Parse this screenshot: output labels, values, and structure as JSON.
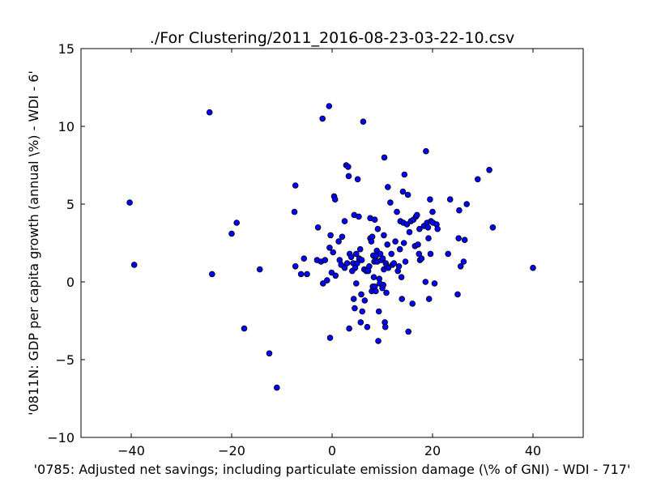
{
  "chart_data": {
    "type": "scatter",
    "title": "./For Clustering/2011_2016-08-23-03-22-10.csv",
    "xlabel": "'0785: Adjusted net savings; including particulate emission damage  (\\% of GNI) - WDI - 717'",
    "ylabel": "'0811N: GDP per capita growth  (annual \\%) - WDI - 6'",
    "xlim": [
      -50,
      50
    ],
    "ylim": [
      -10,
      15
    ],
    "xticks": [
      -40,
      -20,
      0,
      20,
      40
    ],
    "yticks": [
      -10,
      -5,
      0,
      5,
      10,
      15
    ],
    "xtick_labels": [
      "−40",
      "−20",
      "0",
      "20",
      "40"
    ],
    "ytick_labels": [
      "−10",
      "−5",
      "0",
      "5",
      "10",
      "15"
    ],
    "grid": false,
    "marker_color": "#0000ff",
    "points": [
      [
        -40.3,
        5.1
      ],
      [
        -39.4,
        1.1
      ],
      [
        -24.4,
        10.9
      ],
      [
        -23.9,
        0.5
      ],
      [
        -20.0,
        3.1
      ],
      [
        -19.0,
        3.8
      ],
      [
        -17.5,
        -3.0
      ],
      [
        -14.4,
        0.8
      ],
      [
        -12.5,
        -4.6
      ],
      [
        -11.0,
        -6.8
      ],
      [
        -7.3,
        6.2
      ],
      [
        -7.5,
        4.5
      ],
      [
        -7.3,
        1.0
      ],
      [
        -6.2,
        0.5
      ],
      [
        -5.6,
        1.5
      ],
      [
        -5.0,
        0.5
      ],
      [
        -3.0,
        1.4
      ],
      [
        -2.8,
        3.5
      ],
      [
        -2.2,
        1.3
      ],
      [
        -1.9,
        10.5
      ],
      [
        -1.8,
        -0.1
      ],
      [
        -1.4,
        1.4
      ],
      [
        -1.0,
        0.1
      ],
      [
        -0.6,
        11.3
      ],
      [
        -0.5,
        2.2
      ],
      [
        -0.4,
        -3.6
      ],
      [
        -0.3,
        3.0
      ],
      [
        -0.1,
        0.6
      ],
      [
        0.2,
        1.9
      ],
      [
        0.4,
        5.5
      ],
      [
        0.6,
        5.3
      ],
      [
        0.7,
        0.4
      ],
      [
        1.3,
        2.6
      ],
      [
        1.5,
        1.4
      ],
      [
        1.8,
        1.1
      ],
      [
        2.0,
        2.9
      ],
      [
        2.5,
        0.9
      ],
      [
        2.5,
        3.9
      ],
      [
        2.8,
        7.5
      ],
      [
        3.0,
        1.2
      ],
      [
        3.2,
        7.4
      ],
      [
        3.3,
        6.8
      ],
      [
        3.4,
        -3.0
      ],
      [
        3.5,
        1.8
      ],
      [
        3.8,
        1.6
      ],
      [
        4.0,
        0.7
      ],
      [
        4.2,
        1.2
      ],
      [
        4.3,
        -1.1
      ],
      [
        4.4,
        4.3
      ],
      [
        4.5,
        -1.7
      ],
      [
        4.6,
        0.9
      ],
      [
        4.8,
        -0.1
      ],
      [
        4.8,
        1.8
      ],
      [
        5.0,
        1.2
      ],
      [
        5.1,
        6.6
      ],
      [
        5.3,
        4.2
      ],
      [
        5.4,
        1.5
      ],
      [
        5.6,
        2.1
      ],
      [
        5.7,
        -2.6
      ],
      [
        5.8,
        -0.8
      ],
      [
        5.9,
        1.4
      ],
      [
        6.0,
        -1.9
      ],
      [
        6.2,
        10.3
      ],
      [
        6.4,
        0.8
      ],
      [
        6.5,
        -1.2
      ],
      [
        6.8,
        0.7
      ],
      [
        7.0,
        -2.9
      ],
      [
        7.2,
        0.7
      ],
      [
        7.4,
        1.0
      ],
      [
        7.6,
        2.8
      ],
      [
        7.6,
        4.1
      ],
      [
        7.8,
        2.6
      ],
      [
        7.9,
        -0.6
      ],
      [
        8.0,
        2.9
      ],
      [
        8.1,
        -0.3
      ],
      [
        8.2,
        1.7
      ],
      [
        8.3,
        0.3
      ],
      [
        8.4,
        1.3
      ],
      [
        8.5,
        -0.3
      ],
      [
        8.5,
        4.0
      ],
      [
        8.6,
        1.4
      ],
      [
        8.7,
        -0.6
      ],
      [
        8.8,
        1.7
      ],
      [
        8.9,
        2.0
      ],
      [
        9.0,
        1.3
      ],
      [
        9.1,
        3.4
      ],
      [
        9.2,
        -3.8
      ],
      [
        9.3,
        -1.9
      ],
      [
        9.4,
        0.2
      ],
      [
        9.5,
        -0.1
      ],
      [
        9.6,
        1.8
      ],
      [
        9.8,
        1.4
      ],
      [
        10.0,
        -0.4
      ],
      [
        10.1,
        1.5
      ],
      [
        10.2,
        -0.2
      ],
      [
        10.3,
        0.8
      ],
      [
        10.3,
        3.0
      ],
      [
        10.4,
        8.0
      ],
      [
        10.5,
        -2.6
      ],
      [
        10.6,
        -2.9
      ],
      [
        10.7,
        1.2
      ],
      [
        10.8,
        -0.7
      ],
      [
        10.9,
        1.0
      ],
      [
        11.0,
        2.4
      ],
      [
        11.1,
        6.1
      ],
      [
        11.2,
        0.9
      ],
      [
        11.6,
        5.1
      ],
      [
        11.8,
        1.8
      ],
      [
        12.0,
        1.1
      ],
      [
        12.3,
        1.2
      ],
      [
        12.6,
        2.6
      ],
      [
        12.9,
        4.5
      ],
      [
        13.1,
        0.7
      ],
      [
        13.3,
        1.0
      ],
      [
        13.5,
        2.1
      ],
      [
        13.6,
        3.9
      ],
      [
        13.8,
        0.3
      ],
      [
        13.9,
        -1.1
      ],
      [
        14.1,
        5.8
      ],
      [
        14.2,
        3.8
      ],
      [
        14.3,
        2.5
      ],
      [
        14.4,
        6.9
      ],
      [
        14.6,
        1.3
      ],
      [
        14.9,
        3.7
      ],
      [
        15.1,
        5.6
      ],
      [
        15.2,
        -3.2
      ],
      [
        15.4,
        3.2
      ],
      [
        15.7,
        3.9
      ],
      [
        16.0,
        -1.4
      ],
      [
        16.2,
        4.0
      ],
      [
        16.5,
        2.3
      ],
      [
        16.7,
        4.2
      ],
      [
        16.9,
        4.3
      ],
      [
        17.1,
        2.4
      ],
      [
        17.3,
        1.8
      ],
      [
        17.4,
        3.4
      ],
      [
        17.5,
        1.4
      ],
      [
        17.8,
        1.5
      ],
      [
        18.3,
        3.6
      ],
      [
        18.6,
        0.0
      ],
      [
        18.7,
        8.4
      ],
      [
        18.9,
        3.8
      ],
      [
        19.1,
        3.5
      ],
      [
        19.2,
        2.8
      ],
      [
        19.3,
        -1.1
      ],
      [
        19.5,
        5.3
      ],
      [
        19.6,
        1.8
      ],
      [
        19.7,
        3.9
      ],
      [
        20.0,
        4.5
      ],
      [
        20.1,
        3.8
      ],
      [
        20.4,
        -0.1
      ],
      [
        20.8,
        3.7
      ],
      [
        21.0,
        3.4
      ],
      [
        23.1,
        1.8
      ],
      [
        23.5,
        5.3
      ],
      [
        25.0,
        -0.8
      ],
      [
        25.2,
        2.8
      ],
      [
        25.3,
        4.6
      ],
      [
        25.6,
        1.0
      ],
      [
        26.2,
        1.3
      ],
      [
        26.4,
        2.7
      ],
      [
        26.8,
        5.0
      ],
      [
        29.0,
        6.6
      ],
      [
        31.3,
        7.2
      ],
      [
        32.0,
        3.5
      ],
      [
        40.0,
        0.9
      ]
    ]
  }
}
